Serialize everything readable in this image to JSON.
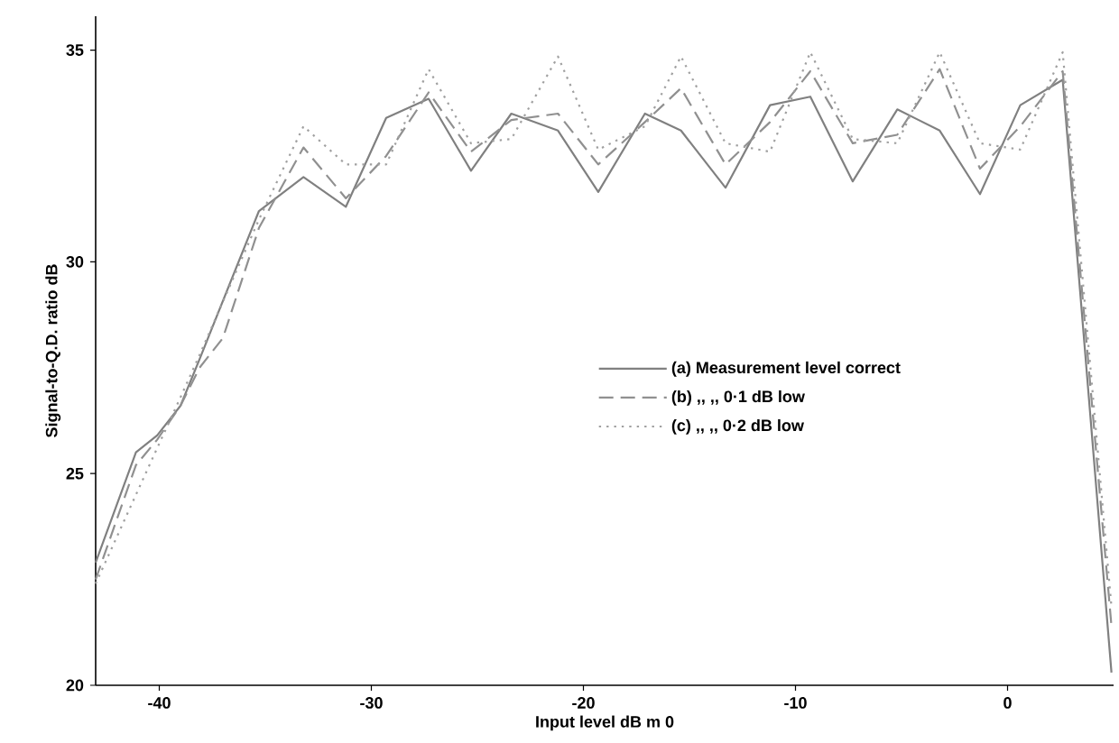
{
  "chart_data": {
    "type": "line",
    "xlabel": "Input level dB m 0",
    "ylabel": "Signal-to-Q.D. ratio dB",
    "xlim": [
      -43,
      5
    ],
    "ylim": [
      20,
      35.8
    ],
    "xticks": [
      -40,
      -30,
      -20,
      -10,
      0
    ],
    "yticks": [
      20,
      25,
      30,
      35
    ],
    "legend": "right",
    "grid": false,
    "marker": "none",
    "series": [
      {
        "name": "(a) Measurement level correct",
        "color": "#808080",
        "line_style": "solid",
        "x": [
          -43,
          -41.1,
          -40.1,
          -39,
          -38.1,
          -35.3,
          -33.2,
          -31.2,
          -29.3,
          -27.3,
          -25.3,
          -23.4,
          -21.2,
          -19.3,
          -17.1,
          -15.4,
          -13.3,
          -11.2,
          -9.3,
          -7.3,
          -5.2,
          -3.2,
          -1.3,
          0.6,
          2.6,
          4.9
        ],
        "values": [
          22.9,
          25.5,
          25.9,
          26.6,
          27.7,
          31.2,
          32.0,
          31.3,
          33.4,
          33.85,
          32.15,
          33.5,
          33.1,
          31.65,
          33.5,
          33.1,
          31.75,
          33.7,
          33.9,
          31.9,
          33.6,
          33.1,
          31.6,
          33.7,
          34.3,
          20.3
        ]
      },
      {
        "name": "(b)      ,,        ,,   0·1 dB low",
        "color": "#909090",
        "line_style": "dashed",
        "x": [
          -43,
          -41.1,
          -40.1,
          -39,
          -38.1,
          -37,
          -35.3,
          -33.2,
          -31.2,
          -29.3,
          -27.3,
          -25.3,
          -23.4,
          -21.2,
          -19.3,
          -17.1,
          -15.4,
          -13.3,
          -11.2,
          -9.3,
          -7.3,
          -5.2,
          -3.2,
          -1.3,
          0.6,
          2.6,
          4.9
        ],
        "values": [
          22.5,
          25.2,
          25.8,
          26.6,
          27.5,
          28.2,
          30.8,
          32.7,
          31.5,
          32.5,
          34.0,
          32.6,
          33.35,
          33.5,
          32.3,
          33.3,
          34.1,
          32.3,
          33.3,
          34.5,
          32.8,
          33.0,
          34.55,
          32.2,
          33.2,
          34.5,
          21.4
        ]
      },
      {
        "name": "(c)      ,,        ,,   0·2 dB low",
        "color": "#a0a0a0",
        "line_style": "dotted",
        "x": [
          -43,
          -41.1,
          -40.1,
          -39,
          -38.1,
          -35.3,
          -33.2,
          -31.2,
          -29.3,
          -27.3,
          -25.3,
          -23.4,
          -21.2,
          -19.3,
          -17.1,
          -15.4,
          -13.3,
          -11.2,
          -9.3,
          -7.3,
          -5.2,
          -3.2,
          -1.3,
          0.6,
          2.6,
          4.9
        ],
        "values": [
          22.4,
          24.5,
          25.6,
          26.8,
          27.8,
          31.0,
          33.2,
          32.3,
          32.3,
          34.55,
          32.8,
          32.9,
          34.85,
          32.65,
          33.2,
          34.85,
          32.8,
          32.6,
          34.95,
          32.9,
          32.8,
          34.95,
          32.8,
          32.65,
          34.95,
          21.85
        ]
      }
    ]
  }
}
